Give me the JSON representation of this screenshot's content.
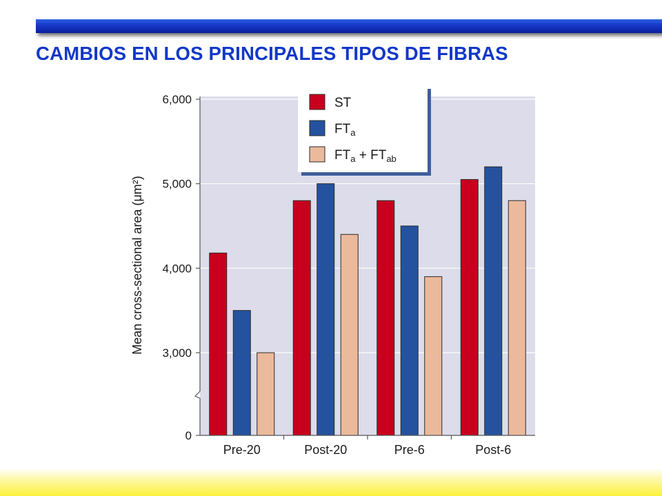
{
  "slide": {
    "title": "CAMBIOS EN LOS PRINCIPALES TIPOS DE FIBRAS"
  },
  "chart_data": {
    "type": "bar",
    "title": "",
    "xlabel": "",
    "ylabel": "Mean cross-sectional area (μm²)",
    "categories": [
      "Pre-20",
      "Post-20",
      "Pre-6",
      "Post-6"
    ],
    "series": [
      {
        "name": "ST",
        "legend_main": "ST",
        "legend_sub": "",
        "legend_main2": "",
        "legend_sub2": "",
        "color": "#c8001e",
        "values": [
          4180,
          4800,
          4800,
          5050
        ]
      },
      {
        "name": "FTa",
        "legend_main": "FT",
        "legend_sub": "a",
        "legend_main2": "",
        "legend_sub2": "",
        "color": "#24529e",
        "values": [
          3500,
          5000,
          4500,
          5200
        ]
      },
      {
        "name": "FTa + FTab",
        "legend_main": "FT",
        "legend_sub": "a",
        "legend_main2": " + FT",
        "legend_sub2": "ab",
        "color": "#ebb99b",
        "values": [
          3000,
          4400,
          3900,
          4800
        ]
      }
    ],
    "yticks": [
      0,
      3000,
      4000,
      5000,
      6000
    ],
    "ytick_labels": [
      "0",
      "3,000",
      "4,000",
      "5,000",
      "6,000"
    ],
    "ylim": [
      0,
      6000
    ],
    "axis_break": [
      0,
      2500
    ],
    "grid": true,
    "legend_position": "top-center",
    "colors": {
      "plot_bg": "#dcdcea",
      "grid": "#ffffff",
      "legend_border": "#3f5e9c"
    }
  }
}
